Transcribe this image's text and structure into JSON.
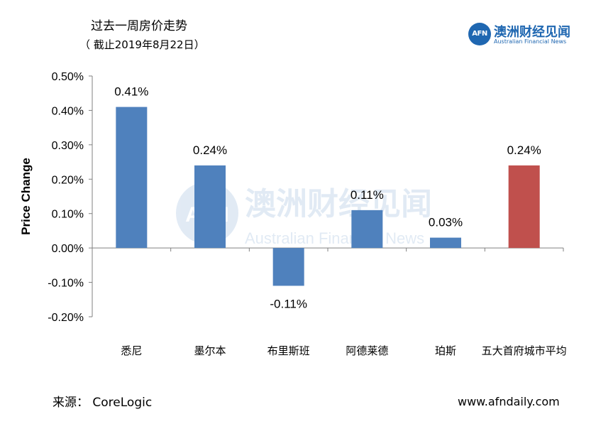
{
  "header": {
    "title": "过去一周房价走势",
    "subtitle": "（ 截止2019年8月22日）"
  },
  "logo": {
    "mark_text": "AFN",
    "name_cn": "澳洲财经见闻",
    "name_en": "Australian Financial News",
    "color": "#1f67b1"
  },
  "watermark": {
    "mark_text": "AFN",
    "name_cn": "澳洲财经见闻",
    "name_en": "Australian Financial News"
  },
  "chart_data": {
    "type": "bar",
    "title": "",
    "ylabel": "Price Change",
    "xlabel": "",
    "ylim": [
      -0.2,
      0.5
    ],
    "yticks": [
      -0.2,
      -0.1,
      0.0,
      0.1,
      0.2,
      0.3,
      0.4,
      0.5
    ],
    "ytick_labels": [
      "-0.20%",
      "-0.10%",
      "0.00%",
      "0.10%",
      "0.20%",
      "0.30%",
      "0.40%",
      "0.50%"
    ],
    "categories": [
      "悉尼",
      "墨尔本",
      "布里斯班",
      "阿德莱德",
      "珀斯",
      "五大首府城市平均"
    ],
    "values": [
      0.41,
      0.24,
      -0.11,
      0.11,
      0.03,
      0.24
    ],
    "value_labels": [
      "0.41%",
      "0.24%",
      "-0.11%",
      "0.11%",
      "0.03%",
      "0.24%"
    ],
    "colors": [
      "#4f81bd",
      "#4f81bd",
      "#4f81bd",
      "#4f81bd",
      "#4f81bd",
      "#c0504d"
    ],
    "grid": false
  },
  "footer": {
    "source": "来源： CoreLogic",
    "site": "www.afndaily.com"
  }
}
